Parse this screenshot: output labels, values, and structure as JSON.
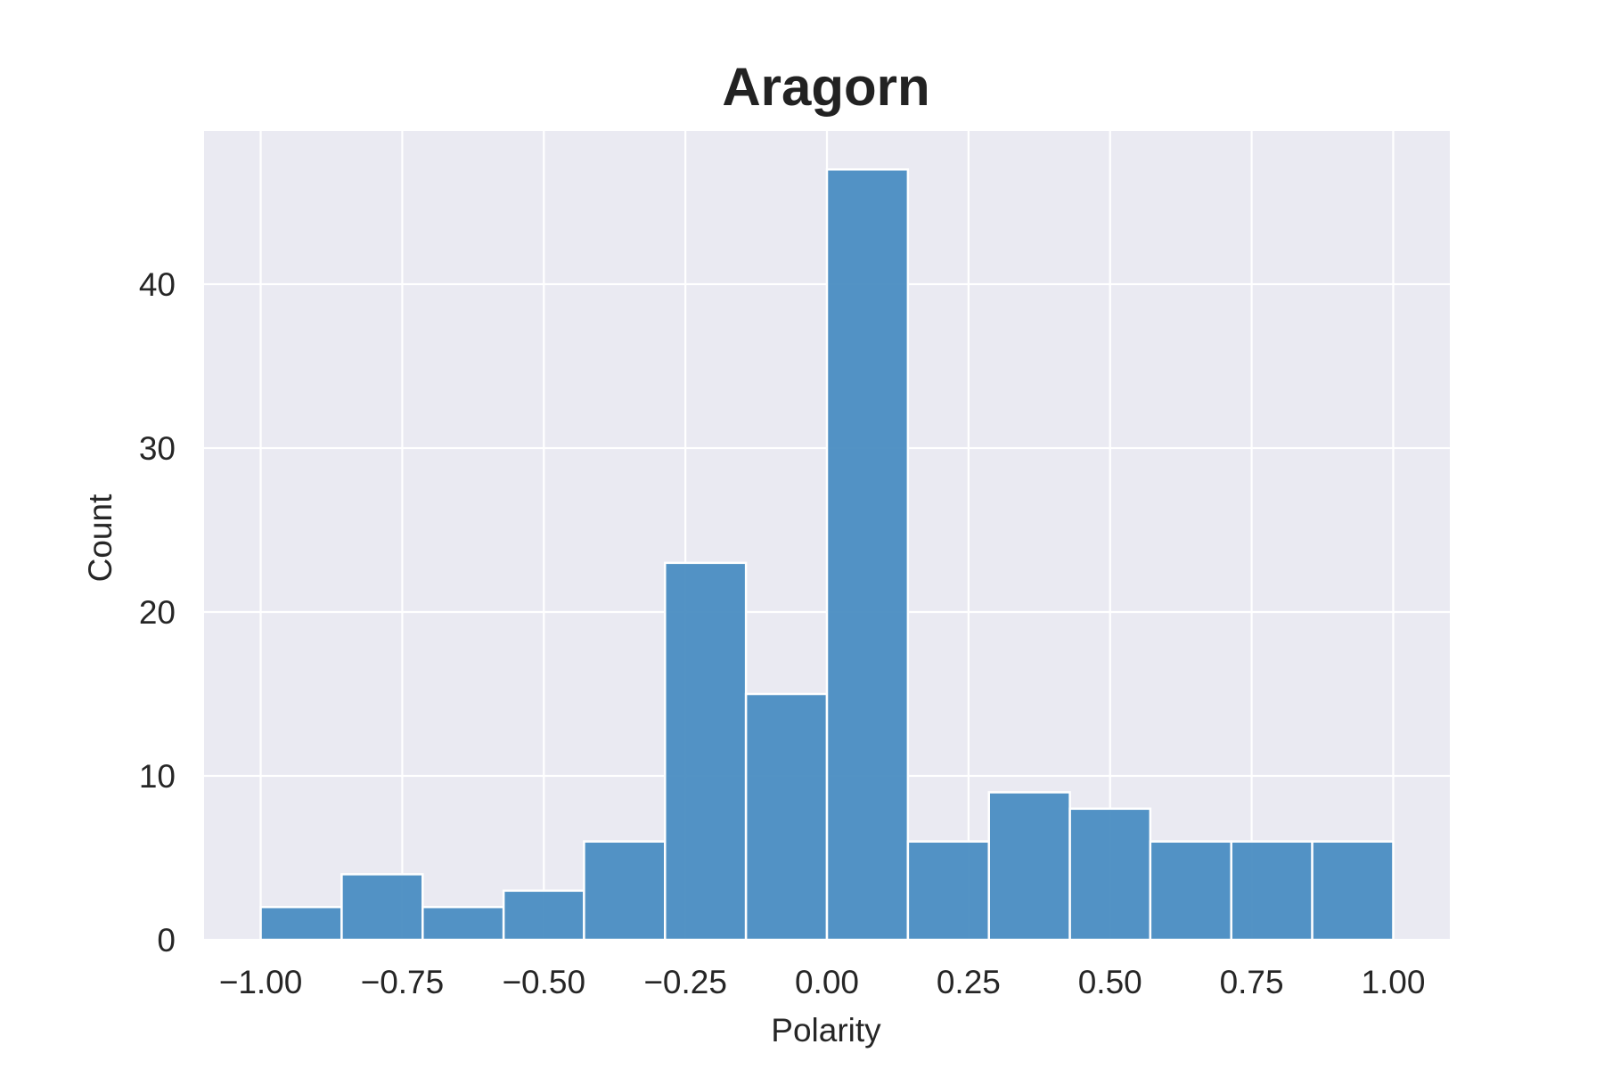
{
  "chart_data": {
    "type": "bar",
    "title": "Aragorn",
    "xlabel": "Polarity",
    "ylabel": "Count",
    "bin_edges": [
      -1.0,
      -0.857,
      -0.714,
      -0.571,
      -0.429,
      -0.286,
      -0.143,
      0.0,
      0.143,
      0.286,
      0.429,
      0.571,
      0.714,
      0.857,
      1.0
    ],
    "values": [
      2,
      4,
      2,
      3,
      6,
      23,
      15,
      47,
      6,
      9,
      8,
      6,
      6,
      6
    ],
    "xlim": [
      -1.1,
      1.1
    ],
    "ylim": [
      0,
      49.35
    ],
    "x_ticks": [
      -1.0,
      -0.75,
      -0.5,
      -0.25,
      0.0,
      0.25,
      0.5,
      0.75,
      1.0
    ],
    "x_tick_labels": [
      "−1.00",
      "−0.75",
      "−0.50",
      "−0.25",
      "0.00",
      "0.25",
      "0.50",
      "0.75",
      "1.00"
    ],
    "y_ticks": [
      0,
      10,
      20,
      30,
      40
    ],
    "y_tick_labels": [
      "0",
      "10",
      "20",
      "30",
      "40"
    ],
    "grid": true,
    "colors": {
      "bar": "#4a8dc2",
      "plot_background": "#eaeaf2",
      "grid": "#ffffff",
      "bar_edge": "#ffffff"
    }
  }
}
